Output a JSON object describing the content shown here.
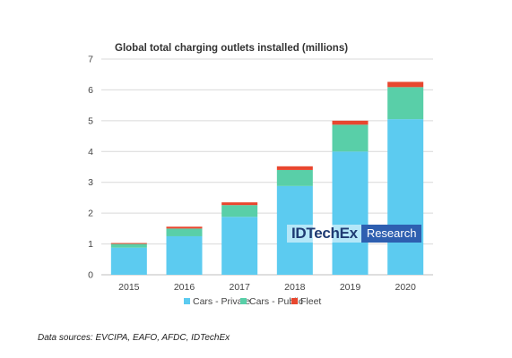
{
  "colors": {
    "cars_private": "#5ccbf0",
    "cars_public": "#59cfa8",
    "fleet": "#e8472f",
    "grid": "#d9d9d9",
    "axis": "#bfbfbf"
  },
  "watermark": {
    "brand": "IDTechEx",
    "tag": "Research"
  },
  "source": "Data sources: EVCIPA, EAFO, AFDC, IDTechEx",
  "chart_data": {
    "type": "bar",
    "stacked": true,
    "title": "Global total charging outlets installed (millions)",
    "xlabel": "",
    "ylabel": "",
    "categories": [
      "2015",
      "2016",
      "2017",
      "2018",
      "2019",
      "2020"
    ],
    "ylim": [
      0,
      7
    ],
    "yticks": [
      "0",
      "1",
      "2",
      "3",
      "4",
      "5",
      "6",
      "7"
    ],
    "grid": true,
    "legend_position": "bottom",
    "series": [
      {
        "name": "Cars - Private",
        "color_key": "cars_private",
        "values": [
          0.88,
          1.25,
          1.88,
          2.88,
          4.0,
          5.05
        ]
      },
      {
        "name": "Cars - Public",
        "color_key": "cars_public",
        "values": [
          0.12,
          0.25,
          0.38,
          0.52,
          0.87,
          1.04
        ]
      },
      {
        "name": "Fleet",
        "color_key": "fleet",
        "values": [
          0.03,
          0.06,
          0.09,
          0.12,
          0.13,
          0.17
        ]
      }
    ]
  }
}
